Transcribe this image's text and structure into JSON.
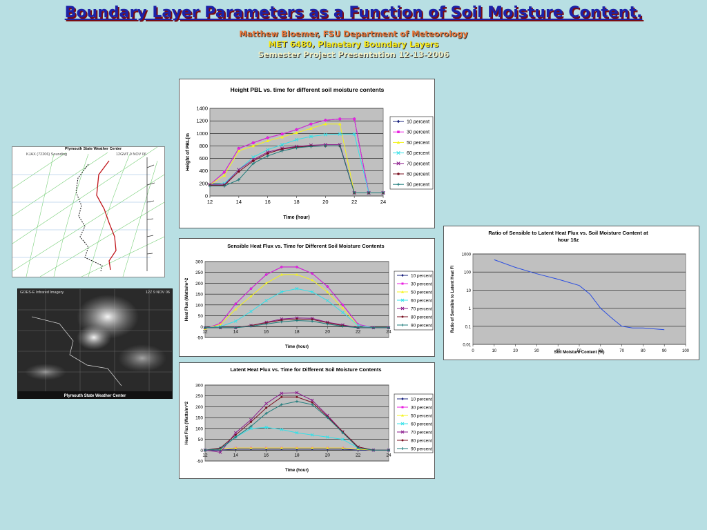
{
  "header": {
    "title": "Boundary Layer Parameters as a Function of Soil Moisture Content.",
    "line1": "Matthew Bloemer, FSU Department of Meteorology",
    "line2": "MET 6480, Planetary Boundary Layers",
    "line3": "Semester Project Presentation 12-13-2006"
  },
  "sounding": {
    "banner": "Plymouth State Weather Center",
    "label_left": "KJAX (72206) Sounding",
    "label_right": "12GMT  9 NOV 06"
  },
  "satellite": {
    "label_left": "GOES-E Infrared Imagery",
    "label_right": "12Z 9 NOV 06",
    "banner": "Plymouth State Weather Center"
  },
  "chart_data": [
    {
      "id": "pbl",
      "type": "line",
      "title": "Height PBL vs. time for different soil moisture contents",
      "xlabel": "Time (hour)",
      "ylabel": "Height of PBL(m",
      "xlim": [
        12,
        24
      ],
      "ylim": [
        0,
        1400
      ],
      "xticks": [
        12,
        14,
        16,
        18,
        20,
        22,
        24
      ],
      "yticks": [
        0,
        200,
        400,
        600,
        800,
        1000,
        1200,
        1400
      ],
      "x": [
        12,
        13,
        14,
        15,
        16,
        17,
        18,
        19,
        20,
        21,
        22,
        23,
        24
      ],
      "series": [
        {
          "name": "10 percent",
          "color": "#1a237e",
          "marker": "diamond",
          "values": [
            180,
            380,
            760,
            850,
            930,
            990,
            1060,
            1150,
            1210,
            1230,
            1230,
            50,
            50
          ]
        },
        {
          "name": "30 percent",
          "color": "#e91ee0",
          "marker": "square",
          "values": [
            180,
            380,
            760,
            850,
            930,
            990,
            1060,
            1150,
            1210,
            1230,
            1230,
            50,
            50
          ]
        },
        {
          "name": "50 percent",
          "color": "#f4f41a",
          "marker": "triangle",
          "values": [
            180,
            330,
            720,
            800,
            880,
            940,
            1010,
            1080,
            1150,
            1150,
            50,
            50,
            50
          ]
        },
        {
          "name": "60 percent",
          "color": "#33e0e8",
          "marker": "x",
          "values": [
            180,
            200,
            420,
            620,
            740,
            820,
            900,
            950,
            980,
            990,
            990,
            50,
            50
          ]
        },
        {
          "name": "70 percent",
          "color": "#8a1a8c",
          "marker": "x",
          "values": [
            180,
            180,
            420,
            580,
            700,
            760,
            790,
            810,
            820,
            820,
            50,
            50,
            50
          ]
        },
        {
          "name": "80 percent",
          "color": "#7a1020",
          "marker": "circle",
          "values": [
            170,
            170,
            390,
            560,
            680,
            750,
            780,
            800,
            800,
            800,
            50,
            50,
            50
          ]
        },
        {
          "name": "90 percent",
          "color": "#1a7a7a",
          "marker": "plus",
          "values": [
            160,
            160,
            260,
            520,
            640,
            720,
            770,
            790,
            800,
            800,
            50,
            50,
            50
          ]
        }
      ]
    },
    {
      "id": "sens",
      "type": "line",
      "title": "Sensible Heat Flux vs. Time for Different Soil Moisture Contents",
      "xlabel": "Time (hour)",
      "ylabel": "Heat Flux (Watts/m^2",
      "xlim": [
        12,
        24
      ],
      "ylim": [
        -50,
        300
      ],
      "xticks": [
        12,
        14,
        16,
        18,
        20,
        22,
        24
      ],
      "yticks": [
        -50,
        0,
        50,
        100,
        150,
        200,
        250,
        300
      ],
      "x": [
        12,
        13,
        14,
        15,
        16,
        17,
        18,
        19,
        20,
        21,
        22,
        23,
        24
      ],
      "series": [
        {
          "name": "10 percent",
          "color": "#1a237e",
          "marker": "diamond",
          "values": [
            -10,
            15,
            105,
            175,
            240,
            275,
            275,
            245,
            185,
            100,
            10,
            -5,
            -5
          ]
        },
        {
          "name": "30 percent",
          "color": "#e91ee0",
          "marker": "square",
          "values": [
            -10,
            15,
            105,
            175,
            240,
            275,
            275,
            245,
            185,
            100,
            10,
            -5,
            -5
          ]
        },
        {
          "name": "50 percent",
          "color": "#f4f41a",
          "marker": "triangle",
          "values": [
            -10,
            10,
            80,
            140,
            200,
            240,
            240,
            215,
            160,
            85,
            5,
            -5,
            -5
          ]
        },
        {
          "name": "60 percent",
          "color": "#33e0e8",
          "marker": "x",
          "values": [
            -5,
            0,
            25,
            70,
            120,
            160,
            175,
            160,
            120,
            65,
            5,
            -5,
            -5
          ]
        },
        {
          "name": "70 percent",
          "color": "#8a1a8c",
          "marker": "x",
          "values": [
            -5,
            -5,
            -5,
            5,
            20,
            35,
            40,
            38,
            20,
            8,
            -5,
            -5,
            -5
          ]
        },
        {
          "name": "80 percent",
          "color": "#7a1020",
          "marker": "circle",
          "values": [
            -5,
            -5,
            -5,
            5,
            18,
            30,
            35,
            33,
            18,
            5,
            -5,
            -5,
            -5
          ]
        },
        {
          "name": "90 percent",
          "color": "#1a7a7a",
          "marker": "plus",
          "values": [
            -5,
            -5,
            -5,
            2,
            12,
            22,
            28,
            25,
            12,
            2,
            -5,
            -5,
            -5
          ]
        }
      ]
    },
    {
      "id": "lat",
      "type": "line",
      "title": "Latent Heat Flux vs. Time for Different Soil Moisture Contents",
      "xlabel": "Time (hour)",
      "ylabel": "Heat Flux (Watts/m^2",
      "xlim": [
        12,
        24
      ],
      "ylim": [
        -50,
        300
      ],
      "xticks": [
        12,
        14,
        16,
        18,
        20,
        22,
        24
      ],
      "yticks": [
        -50,
        0,
        50,
        100,
        150,
        200,
        250,
        300
      ],
      "x": [
        12,
        13,
        14,
        15,
        16,
        17,
        18,
        19,
        20,
        21,
        22,
        23,
        24
      ],
      "series": [
        {
          "name": "10 percent",
          "color": "#1a237e",
          "marker": "diamond",
          "values": [
            0,
            0,
            5,
            5,
            5,
            5,
            5,
            5,
            5,
            5,
            0,
            0,
            0
          ]
        },
        {
          "name": "30 percent",
          "color": "#e91ee0",
          "marker": "square",
          "values": [
            0,
            5,
            10,
            10,
            10,
            10,
            10,
            10,
            10,
            10,
            5,
            0,
            0
          ]
        },
        {
          "name": "50 percent",
          "color": "#f4f41a",
          "marker": "triangle",
          "values": [
            0,
            5,
            10,
            10,
            10,
            10,
            10,
            10,
            10,
            10,
            5,
            0,
            0
          ]
        },
        {
          "name": "60 percent",
          "color": "#33e0e8",
          "marker": "x",
          "values": [
            0,
            10,
            60,
            100,
            105,
            95,
            80,
            70,
            60,
            50,
            10,
            0,
            0
          ]
        },
        {
          "name": "70 percent",
          "color": "#8a1a8c",
          "marker": "x",
          "values": [
            0,
            -10,
            80,
            140,
            215,
            262,
            265,
            230,
            160,
            85,
            15,
            0,
            0
          ]
        },
        {
          "name": "80 percent",
          "color": "#7a1020",
          "marker": "circle",
          "values": [
            0,
            10,
            70,
            130,
            195,
            245,
            245,
            220,
            155,
            85,
            15,
            0,
            0
          ]
        },
        {
          "name": "90 percent",
          "color": "#1a7a7a",
          "marker": "plus",
          "values": [
            0,
            5,
            60,
            110,
            170,
            210,
            225,
            210,
            150,
            80,
            10,
            0,
            0
          ]
        }
      ]
    },
    {
      "id": "ratio",
      "type": "line",
      "title": "Ratio of Sensible to Latent Heat Flux vs. Soil Moisture Content at hour 16z",
      "xlabel": "Soil Moisture Content (%)",
      "ylabel": "Ratio of Sensible to Latent Heat Fl",
      "xlim": [
        0,
        100
      ],
      "ylim": [
        0.01,
        1000
      ],
      "yscale": "log",
      "xticks": [
        0,
        10,
        20,
        30,
        40,
        50,
        60,
        70,
        80,
        90,
        100
      ],
      "yticks": [
        0.01,
        0.1,
        1,
        10,
        100,
        1000
      ],
      "ytick_labels": [
        "0.01",
        "0.1",
        "1",
        "10",
        "100",
        "1000"
      ],
      "x": [
        10,
        20,
        30,
        40,
        50,
        55,
        60,
        65,
        70,
        75,
        80,
        90
      ],
      "series": [
        {
          "name": "",
          "color": "#2a4de0",
          "values": [
            480,
            180,
            80,
            40,
            18,
            6,
            1,
            0.3,
            0.1,
            0.08,
            0.08,
            0.065
          ]
        }
      ]
    }
  ]
}
